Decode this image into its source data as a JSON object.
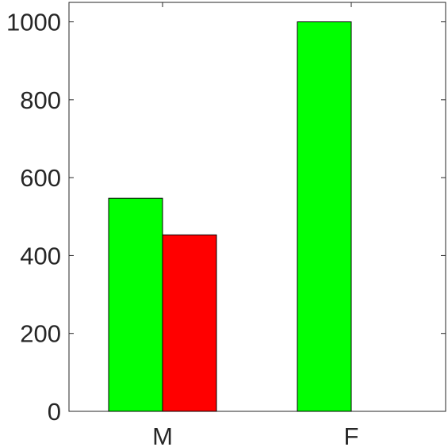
{
  "chart_data": {
    "type": "bar",
    "categories": [
      "M",
      "F"
    ],
    "series": [
      {
        "name": "",
        "color": "#00ff00",
        "values": [
          547,
          1000
        ]
      },
      {
        "name": "",
        "color": "#ff0000",
        "values": [
          453,
          0
        ]
      }
    ],
    "title": "",
    "xlabel": "",
    "ylabel": "",
    "ylim": [
      0,
      1050
    ],
    "yticks": [
      0,
      200,
      400,
      600,
      800,
      1000
    ],
    "grid": false,
    "legend": "none",
    "box": true
  }
}
